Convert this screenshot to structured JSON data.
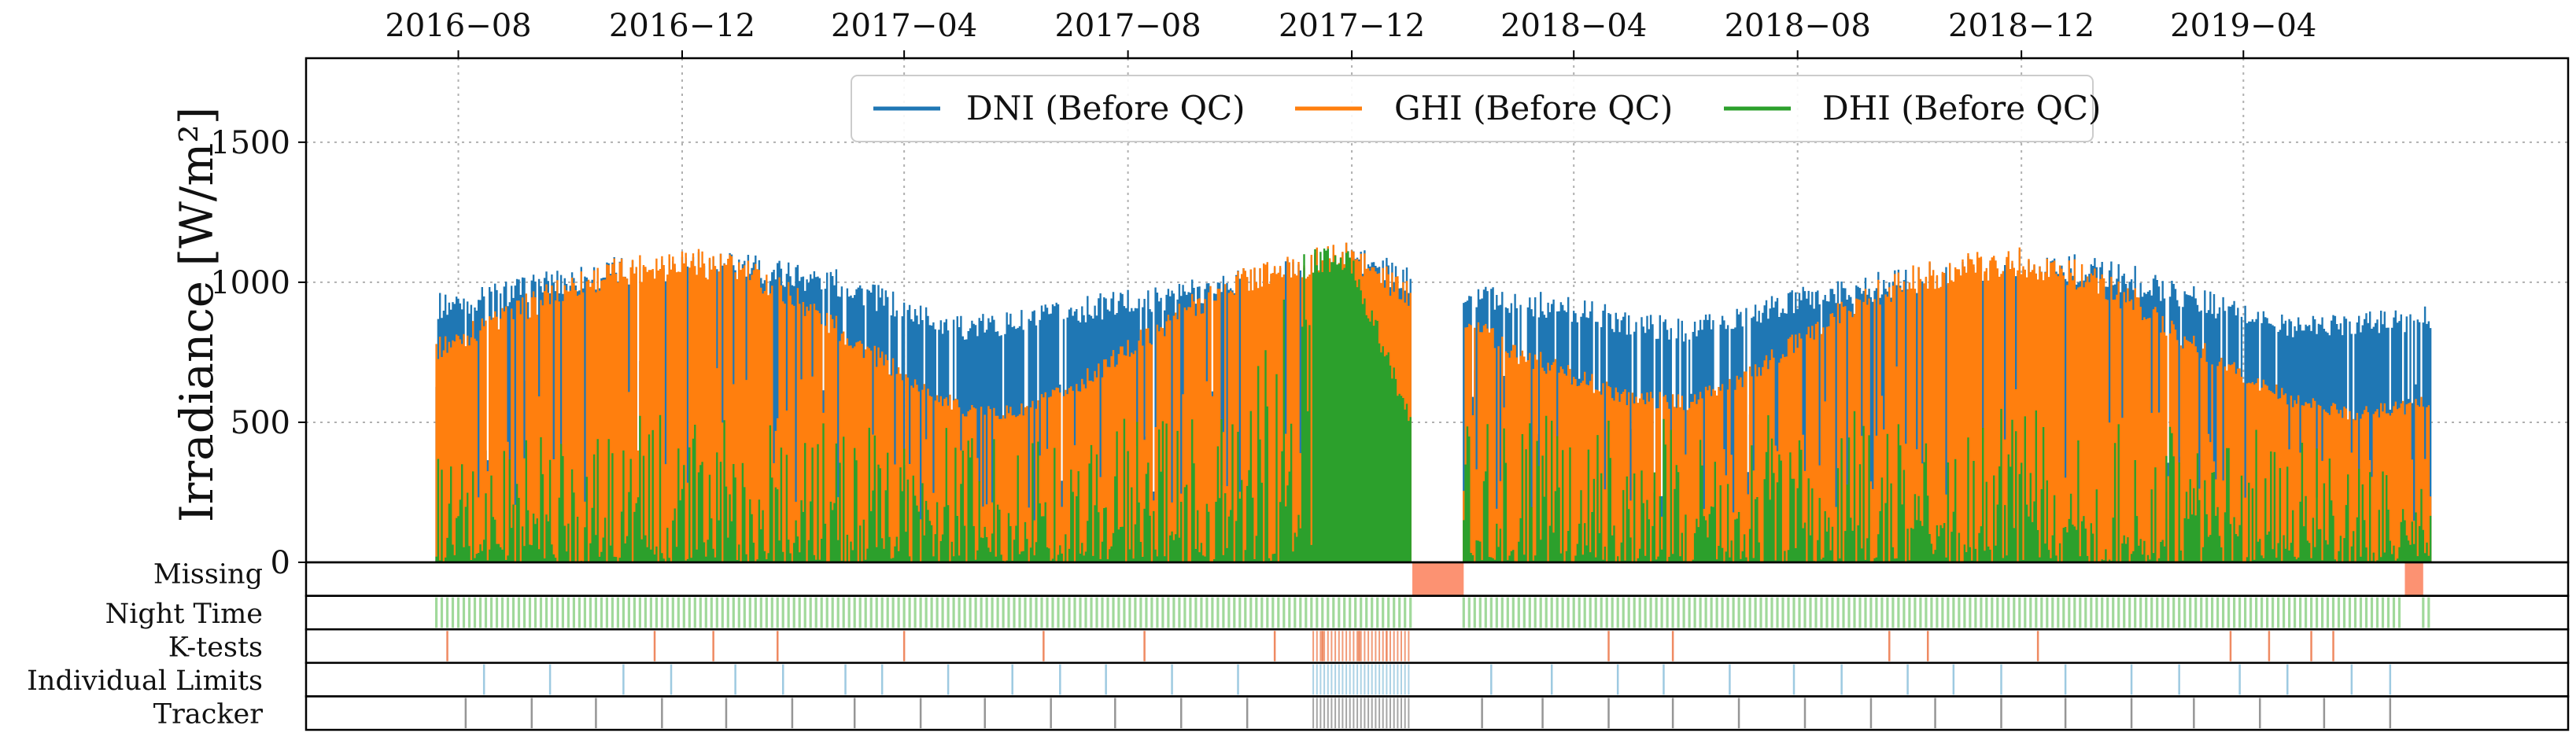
{
  "chart_data": {
    "type": "line",
    "ylabel": "Irradiance [W/m²]",
    "ylim": [
      0,
      1800
    ],
    "yticks": [
      0,
      500,
      1000,
      1500
    ],
    "x_range": [
      "2016-05-10",
      "2019-09-25"
    ],
    "data_start": "2016-07-20",
    "data_end": "2019-07-12",
    "xticks": [
      "2016-08",
      "2016-12",
      "2017-04",
      "2017-08",
      "2017-12",
      "2018-04",
      "2018-08",
      "2018-12",
      "2019-04"
    ],
    "xtick_labels": [
      "2016−08",
      "2016−12",
      "2017−04",
      "2017−08",
      "2017−12",
      "2018−04",
      "2018−08",
      "2018−12",
      "2019−04"
    ],
    "grid": true,
    "legend_position": "top-center",
    "series": [
      {
        "name": "DNI (Before QC)",
        "color": "#1f77b4",
        "monthly_peak": {
          "x": [
            "2016-07-20",
            "2016-09-01",
            "2016-10-01",
            "2016-11-01",
            "2016-12-01",
            "2017-01-01",
            "2017-02-01",
            "2017-03-01",
            "2017-04-01",
            "2017-05-01",
            "2017-06-01",
            "2017-07-01",
            "2017-08-01",
            "2017-09-01",
            "2017-10-01",
            "2017-11-01",
            "2017-12-01",
            "2018-01-01",
            "2018-02-01",
            "2018-03-01",
            "2018-04-01",
            "2018-05-01",
            "2018-06-01",
            "2018-07-01",
            "2018-08-01",
            "2018-09-01",
            "2018-10-01",
            "2018-11-01",
            "2018-12-01",
            "2019-01-01",
            "2019-02-01",
            "2019-03-01",
            "2019-04-01",
            "2019-05-01",
            "2019-06-01",
            "2019-07-12"
          ],
          "values": [
            960,
            1020,
            1060,
            1100,
            1120,
            1110,
            1080,
            1040,
            950,
            880,
            900,
            940,
            980,
            1010,
            1060,
            1100,
            1150,
            1050,
            1020,
            980,
            950,
            900,
            870,
            920,
            980,
            1020,
            1060,
            1100,
            1120,
            1100,
            1060,
            1000,
            930,
            880,
            900,
            920
          ]
        }
      },
      {
        "name": "GHI (Before QC)",
        "color": "#ff7f0e",
        "monthly_peak": {
          "x": [
            "2016-07-20",
            "2016-09-01",
            "2016-10-01",
            "2016-11-01",
            "2016-12-01",
            "2017-01-01",
            "2017-02-01",
            "2017-03-01",
            "2017-04-01",
            "2017-05-01",
            "2017-06-01",
            "2017-07-01",
            "2017-08-01",
            "2017-09-01",
            "2017-10-01",
            "2017-11-01",
            "2017-12-01",
            "2018-01-01",
            "2018-02-01",
            "2018-03-01",
            "2018-04-01",
            "2018-05-01",
            "2018-06-01",
            "2018-07-01",
            "2018-08-01",
            "2018-09-01",
            "2018-10-01",
            "2018-11-01",
            "2018-12-01",
            "2019-01-01",
            "2019-02-01",
            "2019-03-01",
            "2019-04-01",
            "2019-05-01",
            "2019-06-01",
            "2019-07-12"
          ],
          "values": [
            800,
            940,
            1040,
            1100,
            1140,
            1100,
            1000,
            850,
            700,
            580,
            560,
            650,
            800,
            950,
            1060,
            1110,
            1150,
            1000,
            920,
            790,
            700,
            620,
            600,
            680,
            830,
            970,
            1060,
            1110,
            1130,
            1080,
            980,
            830,
            700,
            600,
            560,
            600
          ]
        }
      },
      {
        "name": "DHI (Before QC)",
        "color": "#2ca02c",
        "monthly_peak": {
          "x": [
            "2016-07-20",
            "2016-10-01",
            "2017-01-01",
            "2017-04-01",
            "2017-07-01",
            "2017-10-01",
            "2017-11-01",
            "2017-12-01",
            "2018-01-01",
            "2018-04-01",
            "2018-07-01",
            "2018-10-01",
            "2019-01-01",
            "2019-04-01",
            "2019-07-12"
          ],
          "values": [
            400,
            550,
            520,
            480,
            500,
            540,
            1150,
            1120,
            550,
            520,
            560,
            590,
            560,
            520,
            300
          ]
        }
      }
    ],
    "gap": {
      "start": "2018-01-03",
      "end": "2018-01-31"
    },
    "qc_rows": [
      {
        "label": "Missing",
        "color": "#fc9272",
        "spans": [
          [
            "2018-01-03",
            "2018-01-31"
          ],
          [
            "2019-06-28",
            "2019-07-08"
          ]
        ]
      },
      {
        "label": "Night Time",
        "color": "#a1d99b",
        "spans": [
          [
            "2016-07-20",
            "2018-01-03"
          ],
          [
            "2018-01-31",
            "2019-06-28"
          ],
          [
            "2019-07-08",
            "2019-07-12"
          ]
        ]
      },
      {
        "label": "K-tests",
        "color": "#ef8a62",
        "flags": [
          "2016-07-26",
          "2016-11-16",
          "2016-12-18",
          "2017-01-22",
          "2017-04-01",
          "2017-06-16",
          "2017-08-10",
          "2017-10-20",
          "2017-11-15",
          "2017-12-05",
          "2017-12-20",
          "2018-04-20",
          "2018-05-25",
          "2018-09-20",
          "2018-10-11",
          "2018-12-10",
          "2019-03-25",
          "2019-04-15",
          "2019-05-08",
          "2019-05-20"
        ],
        "dense_span": [
          "2017-11-10",
          "2018-01-03"
        ]
      },
      {
        "label": "Individual Limits",
        "color": "#9ecae1",
        "flags": [
          "2016-08-15",
          "2016-09-20",
          "2016-10-30",
          "2016-11-25",
          "2016-12-30",
          "2017-01-25",
          "2017-02-28",
          "2017-03-20",
          "2017-04-25",
          "2017-05-30",
          "2017-06-25",
          "2017-07-20",
          "2017-08-25",
          "2017-09-30",
          "2018-02-15",
          "2018-03-20",
          "2018-04-25",
          "2018-05-20",
          "2018-06-25",
          "2018-07-30",
          "2018-08-25",
          "2018-09-30",
          "2018-10-25",
          "2018-11-20",
          "2018-12-25",
          "2019-01-30",
          "2019-02-25",
          "2019-03-30",
          "2019-04-25",
          "2019-05-30",
          "2019-06-20"
        ],
        "dense_span": [
          "2017-11-10",
          "2018-01-03"
        ]
      },
      {
        "label": "Tracker",
        "color": "#969696",
        "flags": [
          "2016-08-05",
          "2016-09-10",
          "2016-10-15",
          "2016-11-20",
          "2016-12-25",
          "2017-01-30",
          "2017-03-05",
          "2017-04-10",
          "2017-05-15",
          "2017-06-20",
          "2017-07-25",
          "2017-08-30",
          "2017-10-05",
          "2018-02-10",
          "2018-03-15",
          "2018-04-20",
          "2018-05-25",
          "2018-06-30",
          "2018-08-05",
          "2018-09-10",
          "2018-10-15",
          "2018-11-20",
          "2018-12-25",
          "2019-01-30",
          "2019-03-05",
          "2019-04-10",
          "2019-05-15",
          "2019-06-20"
        ],
        "dense_span": [
          "2017-11-10",
          "2018-01-03"
        ]
      }
    ]
  }
}
